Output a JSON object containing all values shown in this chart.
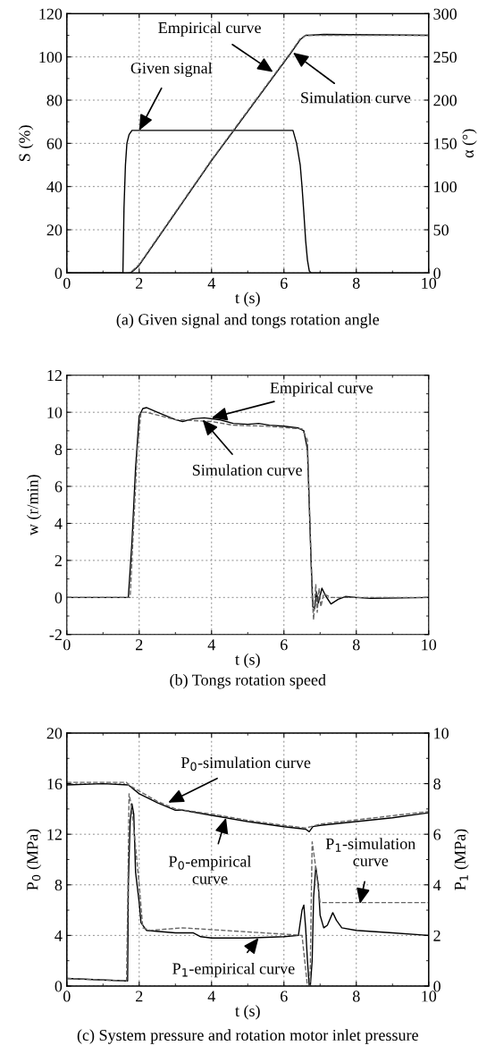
{
  "chart_data": [
    {
      "type": "line",
      "title": "(a) Given signal and tongs rotation angle",
      "xlabel": "t (s)",
      "ylabel": "S (%)",
      "y2label": "α (°)",
      "xlim": [
        0,
        10
      ],
      "xticks": [
        0,
        2,
        4,
        6,
        8,
        10
      ],
      "ylim": [
        0,
        120
      ],
      "yticks": [
        0,
        20,
        40,
        60,
        80,
        100,
        120
      ],
      "y2lim": [
        0,
        300
      ],
      "y2ticks": [
        0,
        50,
        100,
        150,
        200,
        250,
        300
      ],
      "grid": true,
      "legend": false,
      "series": [
        {
          "color": "#000000",
          "line_style": "solid",
          "x": [
            0,
            1.55,
            1.58,
            1.62,
            1.66,
            1.72,
            1.8,
            2.0,
            6.25,
            6.35,
            6.45,
            6.5,
            6.55,
            6.6,
            6.65,
            6.7,
            6.75,
            10
          ],
          "values": [
            0,
            0,
            30,
            50,
            60,
            64,
            66,
            66,
            66,
            60,
            50,
            40,
            28,
            15,
            6,
            1,
            0,
            0
          ]
        },
        {
          "color": "#000000",
          "line_style": "solid",
          "axis": "y2",
          "x": [
            0,
            1.75,
            1.85,
            2.0,
            4.0,
            6.2,
            6.45,
            6.6,
            6.7,
            7.1,
            10
          ],
          "values": [
            0,
            0,
            3,
            9,
            130,
            255,
            270,
            275,
            275,
            276,
            275
          ]
        },
        {
          "color": "#666666",
          "line_style": "dashed",
          "axis": "y2",
          "x": [
            0,
            1.72,
            1.82,
            2.0,
            4.0,
            6.2,
            6.45,
            6.6,
            6.7,
            10
          ],
          "values": [
            0,
            0,
            3,
            10,
            131,
            256,
            271,
            275,
            275,
            275
          ]
        }
      ],
      "annotations": [
        {
          "text": "Given signal",
          "x": 2.0,
          "y": 66
        },
        {
          "text": "Empirical curve",
          "x": 5.7,
          "y": 93
        },
        {
          "text": "Simulation curve",
          "x": 6.25,
          "y": 102
        }
      ]
    },
    {
      "type": "line",
      "title": "(b) Tongs rotation speed",
      "xlabel": "t (s)",
      "ylabel": "w (r/min)",
      "xlim": [
        0,
        10
      ],
      "xticks": [
        0,
        2,
        4,
        6,
        8,
        10
      ],
      "ylim": [
        -2,
        12
      ],
      "yticks": [
        -2,
        0,
        2,
        4,
        6,
        8,
        10,
        12
      ],
      "grid": true,
      "legend": false,
      "series": [
        {
          "color": "#000000",
          "line_style": "solid",
          "x": [
            0,
            1.7,
            1.8,
            1.9,
            2.0,
            2.1,
            2.2,
            2.5,
            3.0,
            3.2,
            3.5,
            3.8,
            4.2,
            4.6,
            5.0,
            5.3,
            5.6,
            6.0,
            6.4,
            6.55,
            6.65,
            6.7,
            6.75,
            6.8,
            6.85,
            6.9,
            6.95,
            7.05,
            7.15,
            7.3,
            7.5,
            7.7,
            8.0,
            8.4,
            10
          ],
          "values": [
            0,
            0,
            3,
            7,
            9.8,
            10.2,
            10.25,
            10.0,
            9.6,
            9.5,
            9.65,
            9.7,
            9.6,
            9.4,
            9.35,
            9.4,
            9.3,
            9.25,
            9.15,
            9.0,
            8.0,
            5,
            2,
            -0.5,
            -0.6,
            0.3,
            -0.3,
            0.5,
            0.1,
            -0.35,
            -0.1,
            0.05,
            0,
            -0.05,
            0
          ]
        },
        {
          "color": "#666666",
          "line_style": "dashed",
          "x": [
            0,
            1.75,
            1.85,
            1.95,
            2.05,
            2.2,
            3.0,
            3.5,
            4.0,
            4.6,
            5.5,
            6.5,
            6.65,
            6.72,
            6.78,
            6.82,
            6.88,
            6.92,
            6.97,
            7.02,
            7.1,
            7.3,
            10
          ],
          "values": [
            0,
            0,
            4,
            8,
            10.0,
            10.0,
            9.6,
            9.55,
            9.5,
            9.3,
            9.25,
            9.1,
            8.5,
            4,
            0,
            -1.2,
            0.7,
            -0.8,
            0.5,
            -0.5,
            0.2,
            0,
            0
          ]
        }
      ],
      "annotations": [
        {
          "text": "Empirical curve",
          "x": 4.0,
          "y": 9.7
        },
        {
          "text": "Simulation curve",
          "x": 3.75,
          "y": 9.6
        }
      ]
    },
    {
      "type": "line",
      "title": "(c) System pressure and rotation motor inlet pressure",
      "xlabel": "t (s)",
      "ylabel": "P$_{0}$ (MPa)",
      "y2label": "P$_{1}$ (MPa)",
      "xlim": [
        0,
        10
      ],
      "xticks": [
        0,
        2,
        4,
        6,
        8,
        10
      ],
      "ylim": [
        0,
        20
      ],
      "yticks": [
        0,
        4,
        8,
        12,
        16,
        20
      ],
      "y2lim": [
        0,
        10
      ],
      "y2ticks": [
        0,
        2,
        4,
        6,
        8,
        10
      ],
      "grid": true,
      "legend": false,
      "series": [
        {
          "color": "#000000",
          "line_style": "solid",
          "x": [
            0,
            1.0,
            1.7,
            2.0,
            2.5,
            3.0,
            3.2,
            4.0,
            5.0,
            6.0,
            6.6,
            6.7,
            6.8,
            7.0,
            8.0,
            9.0,
            10
          ],
          "values": [
            15.9,
            16.0,
            15.9,
            15.2,
            14.5,
            13.9,
            13.9,
            13.5,
            13.0,
            12.6,
            12.4,
            12.2,
            12.6,
            12.7,
            13.0,
            13.3,
            13.7
          ]
        },
        {
          "color": "#666666",
          "line_style": "dashed",
          "x": [
            0,
            1.65,
            1.7,
            2.5,
            3.0,
            4.0,
            5.0,
            6.0,
            6.6,
            6.75,
            7.0,
            10
          ],
          "values": [
            16.1,
            16.1,
            15.9,
            14.6,
            14.0,
            13.6,
            13.1,
            12.7,
            12.5,
            12.6,
            12.8,
            13.8
          ]
        },
        {
          "color": "#000000",
          "line_style": "solid",
          "axis": "y2",
          "x": [
            0,
            1.65,
            1.68,
            1.7,
            1.75,
            1.8,
            1.85,
            1.9,
            2.0,
            2.05,
            2.2,
            3.0,
            3.5,
            3.7,
            4.0,
            5.0,
            6.0,
            6.4,
            6.5,
            6.55,
            6.6,
            6.65,
            6.7,
            6.73,
            6.78,
            6.82,
            6.88,
            6.95,
            7.0,
            7.1,
            7.2,
            7.35,
            7.45,
            7.6,
            8.0,
            9.0,
            10
          ],
          "values": [
            0.3,
            0.2,
            0.2,
            4,
            6.5,
            7.2,
            6.8,
            4.5,
            3.3,
            2.5,
            2.2,
            2.1,
            2.1,
            1.95,
            1.9,
            1.9,
            1.95,
            2.0,
            3.0,
            3.2,
            2.3,
            1.0,
            0.0,
            0.0,
            1.0,
            3.5,
            4.7,
            4.0,
            2.8,
            2.3,
            2.4,
            2.9,
            2.6,
            2.3,
            2.2,
            2.1,
            2.0
          ]
        },
        {
          "color": "#666666",
          "line_style": "dashed",
          "axis": "y2",
          "x": [
            0,
            1.65,
            1.68,
            1.72,
            1.8,
            2.0,
            2.1,
            2.3,
            3.2,
            6.0,
            6.5,
            6.65,
            6.72,
            6.78,
            6.85,
            7.0,
            10
          ],
          "values": [
            0.3,
            0.2,
            3,
            7.6,
            7.0,
            4,
            2.3,
            2.2,
            2.3,
            2.05,
            2.0,
            0.0,
            0.0,
            5.7,
            5.0,
            3.3,
            3.3
          ]
        }
      ],
      "annotations": [
        {
          "text": "P$_{0}$-simulation curve",
          "x": 2.8,
          "y": 14.5
        },
        {
          "text": "P$_{0}$-empirical\ncurve",
          "x": 4.4,
          "y": 13.3
        },
        {
          "text": "P$_{1}$-empirical curve",
          "x": 5.3,
          "y": 3.8
        },
        {
          "text": "P$_{1}$-simulation\ncurve",
          "x": 8.1,
          "y": 6.5
        }
      ]
    }
  ]
}
